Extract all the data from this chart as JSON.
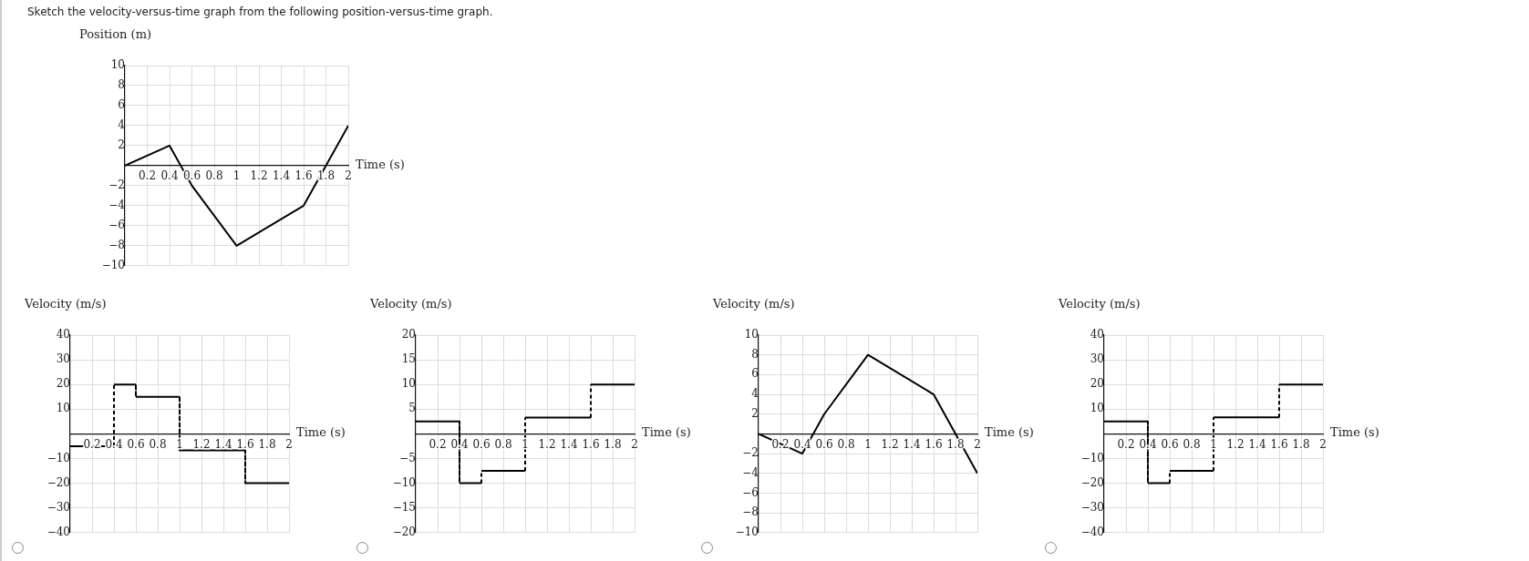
{
  "chart_data": [
    {
      "type": "line",
      "title": "Sketch the velocity-versus-time graph from the following position-versus-time graph.",
      "xlabel": "Time (s)",
      "ylabel": "Position (m)",
      "x": [
        0,
        0.4,
        0.6,
        1,
        1.6,
        2
      ],
      "series": [
        {
          "color": "#000000",
          "values": [
            0,
            2,
            -2,
            -8,
            -4,
            4
          ]
        }
      ],
      "xlim": [
        0,
        2
      ],
      "xticks": [
        0.2,
        0.4,
        0.6,
        0.8,
        1,
        1.2,
        1.4,
        1.6,
        1.8,
        2
      ],
      "ylim": [
        -10,
        10
      ],
      "yticks": [
        {
          "value": -10,
          "label": "−10"
        },
        {
          "value": -8,
          "label": "−8"
        },
        {
          "value": -6,
          "label": "−6"
        },
        {
          "value": -4,
          "label": "−4"
        },
        {
          "value": -2,
          "label": "−2"
        },
        2,
        4,
        6,
        8,
        10
      ],
      "grid": true
    },
    {
      "type": "step",
      "xlabel": "Time (s)",
      "ylabel": "Velocity (m/s)",
      "x": [
        0,
        0.4,
        0.6,
        1,
        1.6,
        2
      ],
      "series": [
        {
          "color": "#000000",
          "values": [
            -5,
            20,
            15,
            -6.7,
            -20,
            -20
          ]
        }
      ],
      "xlim": [
        0,
        2
      ],
      "xticks": [
        0.2,
        0.4,
        0.6,
        0.8,
        1,
        1.2,
        1.4,
        1.6,
        1.8,
        2
      ],
      "ylim": [
        -40,
        40
      ],
      "yticks": [
        {
          "value": -40,
          "label": "−40"
        },
        {
          "value": -30,
          "label": "−30"
        },
        {
          "value": -20,
          "label": "−20"
        },
        {
          "value": -10,
          "label": "−10"
        },
        10,
        20,
        30,
        40
      ],
      "grid": true
    },
    {
      "type": "step",
      "xlabel": "Time (s)",
      "ylabel": "Velocity (m/s)",
      "x": [
        0,
        0.4,
        0.6,
        1,
        1.6,
        2
      ],
      "series": [
        {
          "color": "#000000",
          "values": [
            2.5,
            -10,
            -7.5,
            3.3,
            10,
            10
          ]
        }
      ],
      "xlim": [
        0,
        2
      ],
      "xticks": [
        0.2,
        0.4,
        0.6,
        0.8,
        1,
        1.2,
        1.4,
        1.6,
        1.8,
        2
      ],
      "ylim": [
        -20,
        20
      ],
      "yticks": [
        {
          "value": -20,
          "label": "−20"
        },
        {
          "value": -15,
          "label": "−15"
        },
        {
          "value": -10,
          "label": "−10"
        },
        {
          "value": -5,
          "label": "−5"
        },
        5,
        10,
        15,
        20
      ],
      "grid": true
    },
    {
      "type": "line",
      "xlabel": "Time (s)",
      "ylabel": "Velocity (m/s)",
      "x": [
        0,
        0.4,
        0.6,
        1,
        1.6,
        2
      ],
      "series": [
        {
          "color": "#000000",
          "values": [
            0,
            -2,
            2,
            8,
            4,
            -4
          ]
        }
      ],
      "xlim": [
        0,
        2
      ],
      "xticks": [
        0.2,
        0.4,
        0.6,
        0.8,
        1,
        1.2,
        1.4,
        1.6,
        1.8,
        2
      ],
      "ylim": [
        -10,
        10
      ],
      "yticks": [
        {
          "value": -10,
          "label": "−10"
        },
        {
          "value": -8,
          "label": "−8"
        },
        {
          "value": -6,
          "label": "−6"
        },
        {
          "value": -4,
          "label": "−4"
        },
        {
          "value": -2,
          "label": "−2"
        },
        2,
        4,
        6,
        8,
        10
      ],
      "grid": true
    },
    {
      "type": "step",
      "xlabel": "Time (s)",
      "ylabel": "Velocity (m/s)",
      "x": [
        0,
        0.4,
        0.6,
        1,
        1.6,
        2
      ],
      "series": [
        {
          "color": "#000000",
          "values": [
            5,
            -20,
            -15,
            6.7,
            20,
            20
          ]
        }
      ],
      "xlim": [
        0,
        2
      ],
      "xticks": [
        0.2,
        0.4,
        0.6,
        0.8,
        1,
        1.2,
        1.4,
        1.6,
        1.8,
        2
      ],
      "ylim": [
        -40,
        40
      ],
      "yticks": [
        {
          "value": -40,
          "label": "−40"
        },
        {
          "value": -30,
          "label": "−30"
        },
        {
          "value": -20,
          "label": "−20"
        },
        {
          "value": -10,
          "label": "−10"
        },
        10,
        20,
        30,
        40
      ],
      "grid": true
    }
  ]
}
